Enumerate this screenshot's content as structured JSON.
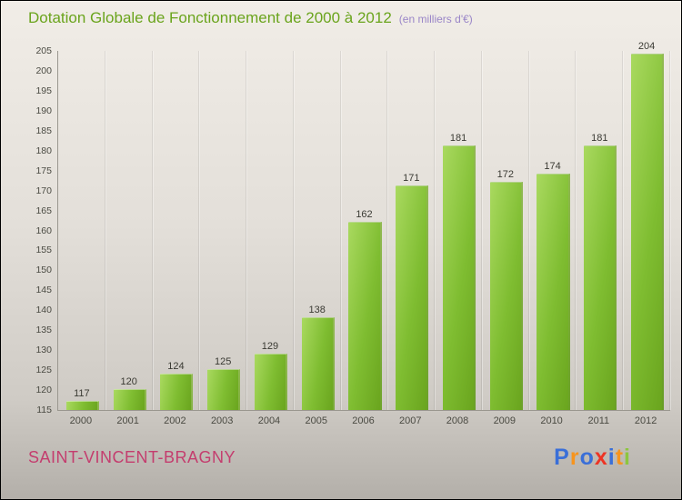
{
  "chart_data": {
    "type": "bar",
    "title": "Dotation Globale de Fonctionnement de 2000 à 2012",
    "subtitle": "(en milliers d'€)",
    "categories": [
      "2000",
      "2001",
      "2002",
      "2003",
      "2004",
      "2005",
      "2006",
      "2007",
      "2008",
      "2009",
      "2010",
      "2011",
      "2012"
    ],
    "values": [
      117,
      120,
      124,
      125,
      129,
      138,
      162,
      171,
      181,
      172,
      174,
      181,
      204
    ],
    "ylim": [
      115,
      205
    ],
    "ytick_step": 5,
    "grid": "vertical-separators",
    "legend": "none"
  },
  "footer": {
    "location": "SAINT-VINCENT-BRAGNY",
    "logo_letters": [
      {
        "ch": "P",
        "color": "#3a6fd8"
      },
      {
        "ch": "r",
        "color": "#f7941d"
      },
      {
        "ch": "o",
        "color": "#3a6fd8"
      },
      {
        "ch": "x",
        "color": "#ed3424"
      },
      {
        "ch": "i",
        "color": "#3a6fd8"
      },
      {
        "ch": "t",
        "color": "#f7941d"
      },
      {
        "ch": "i",
        "color": "#8dc63f"
      }
    ]
  },
  "colors": {
    "title": "#6aa41c",
    "subtitle": "#9a86c8",
    "location": "#c43d6e",
    "axis": "#9a978f",
    "bar_light": "#a9d95f",
    "bar_dark": "#6aa51e"
  }
}
